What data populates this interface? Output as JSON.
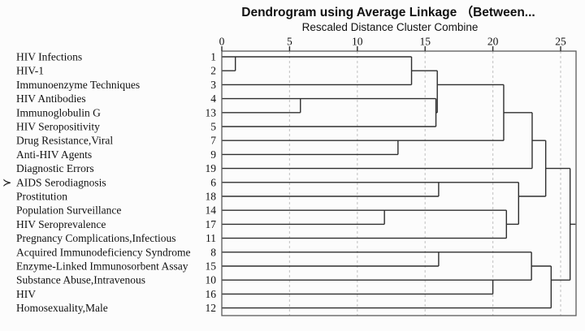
{
  "title": "Dendrogram using Average Linkage （Between...",
  "subtitle": "Rescaled Distance Cluster Combine",
  "marker_glyph": "≻",
  "colors": {
    "tree_line": "#2e2e2e",
    "grid_line": "#c9c9c9",
    "frame": "#5a5a5a",
    "text": "#111111",
    "background": "#fcfcfc"
  },
  "chart_data": {
    "type": "dendrogram",
    "title": "Dendrogram using Average Linkage （Between...",
    "xlabel": "Rescaled Distance Cluster Combine",
    "linkage_method": "Average Linkage",
    "xlim": [
      0,
      25
    ],
    "x_ticks": [
      0,
      5,
      10,
      15,
      20,
      25
    ],
    "grid": "dashed-vertical",
    "leaves": [
      {
        "row": 1,
        "label": "HIV Infections",
        "id": 1,
        "marked": false
      },
      {
        "row": 2,
        "label": "HIV-1",
        "id": 2,
        "marked": false
      },
      {
        "row": 3,
        "label": "Immunoenzyme Techniques",
        "id": 3,
        "marked": false
      },
      {
        "row": 4,
        "label": "HIV Antibodies",
        "id": 4,
        "marked": false
      },
      {
        "row": 5,
        "label": "Immunoglobulin G",
        "id": 13,
        "marked": false
      },
      {
        "row": 6,
        "label": "HIV Seropositivity",
        "id": 5,
        "marked": false
      },
      {
        "row": 7,
        "label": "Drug Resistance,Viral",
        "id": 7,
        "marked": false
      },
      {
        "row": 8,
        "label": "Anti-HIV Agents",
        "id": 9,
        "marked": false
      },
      {
        "row": 9,
        "label": "Diagnostic Errors",
        "id": 19,
        "marked": false
      },
      {
        "row": 10,
        "label": "AIDS Serodiagnosis",
        "id": 6,
        "marked": true
      },
      {
        "row": 11,
        "label": "Prostitution",
        "id": 18,
        "marked": false
      },
      {
        "row": 12,
        "label": "Population Surveillance",
        "id": 14,
        "marked": false
      },
      {
        "row": 13,
        "label": "HIV Seroprevalence",
        "id": 17,
        "marked": false
      },
      {
        "row": 14,
        "label": "Pregnancy Complications,Infectious",
        "id": 11,
        "marked": false
      },
      {
        "row": 15,
        "label": "Acquired Immunodeficiency Syndrome",
        "id": 8,
        "marked": false
      },
      {
        "row": 16,
        "label": "Enzyme-Linked Immunosorbent Assay",
        "id": 15,
        "marked": false
      },
      {
        "row": 17,
        "label": "Substance Abuse,Intravenous",
        "id": 10,
        "marked": false
      },
      {
        "row": 18,
        "label": "HIV",
        "id": 16,
        "marked": false
      },
      {
        "row": 19,
        "label": "Homosexuality,Male",
        "id": 12,
        "marked": false
      }
    ],
    "merges": [
      {
        "distance": 1.0,
        "joins": [
          "HIV Infections (1)",
          "HIV-1 (2)"
        ]
      },
      {
        "distance": 5.8,
        "joins": [
          "HIV Antibodies (4)",
          "Immunoglobulin G (13)"
        ]
      },
      {
        "distance": 12.0,
        "joins": [
          "Population Surveillance (14)",
          "HIV Seroprevalence (17)"
        ]
      },
      {
        "distance": 13.0,
        "joins": [
          "Drug Resistance,Viral (7)",
          "Anti-HIV Agents (9)"
        ]
      },
      {
        "distance": 14.0,
        "joins": [
          "cluster(1,2)",
          "Immunoenzyme Techniques (3)"
        ]
      },
      {
        "distance": 15.8,
        "joins": [
          "cluster(4,13)",
          "HIV Seropositivity (5)"
        ]
      },
      {
        "distance": 15.9,
        "joins": [
          "cluster(1,2,3)",
          "cluster(4,13,5)"
        ]
      },
      {
        "distance": 16.0,
        "joins": [
          "AIDS Serodiagnosis (6)",
          "Prostitution (18)"
        ]
      },
      {
        "distance": 16.0,
        "joins": [
          "Acquired Immunodeficiency Syndrome (8)",
          "Enzyme-Linked Immunosorbent Assay (15)"
        ]
      },
      {
        "distance": 20.0,
        "joins": [
          "Substance Abuse,Intravenous (10)",
          "HIV (16)"
        ]
      },
      {
        "distance": 20.8,
        "joins": [
          "cluster(1,2,3,4,13,5)",
          "cluster(7,9)"
        ]
      },
      {
        "distance": 21.0,
        "joins": [
          "cluster(14,17)",
          "Pregnancy Complications,Infectious (11)"
        ]
      },
      {
        "distance": 21.9,
        "joins": [
          "cluster(6,18)",
          "cluster(14,17,11)"
        ]
      },
      {
        "distance": 22.85,
        "joins": [
          "cluster(8,15)",
          "cluster(10,16)"
        ]
      },
      {
        "distance": 22.9,
        "joins": [
          "cluster(1,2,3,4,13,5,7,9)",
          "Diagnostic Errors (19)"
        ]
      },
      {
        "distance": 23.9,
        "joins": [
          "top cluster",
          "cluster(6,18,14,17,11)"
        ]
      },
      {
        "distance": 24.3,
        "joins": [
          "cluster(8,15,10,16)",
          "Homosexuality,Male (12)"
        ]
      },
      {
        "distance": 25.7,
        "joins": [
          "all upper clusters",
          "cluster(8,15,10,16,12)"
        ]
      }
    ],
    "horizontal_segments": [
      [
        1,
        0,
        14
      ],
      [
        2,
        0,
        1
      ],
      [
        2,
        14,
        15.9
      ],
      [
        3,
        0,
        14
      ],
      [
        3,
        15.9,
        20.8
      ],
      [
        4,
        0,
        15.8
      ],
      [
        5,
        0,
        5.8
      ],
      [
        5,
        15.8,
        15.9
      ],
      [
        5,
        20.8,
        22.9
      ],
      [
        6,
        0,
        15.8
      ],
      [
        7,
        0,
        20.8
      ],
      [
        8,
        0,
        13
      ],
      [
        7,
        22.9,
        23.9
      ],
      [
        9,
        0,
        22.9
      ],
      [
        9,
        23.9,
        25.7
      ],
      [
        10,
        0,
        21.9
      ],
      [
        11,
        0,
        16
      ],
      [
        11,
        21.9,
        23.9
      ],
      [
        12,
        0,
        21
      ],
      [
        13,
        0,
        12
      ],
      [
        13,
        21,
        21.9
      ],
      [
        14,
        0,
        21
      ],
      [
        15,
        0,
        22.85
      ],
      [
        16,
        0,
        16
      ],
      [
        16,
        22.85,
        24.3
      ],
      [
        17,
        0,
        22.85
      ],
      [
        18,
        0,
        20
      ],
      [
        17,
        24.3,
        25.7
      ],
      [
        19,
        0,
        24.3
      ],
      [
        13,
        25.7,
        26.1
      ]
    ],
    "vertical_segments": [
      [
        1,
        1,
        2
      ],
      [
        5.8,
        4,
        5
      ],
      [
        13,
        7,
        8
      ],
      [
        14,
        1,
        3
      ],
      [
        15.8,
        4,
        6
      ],
      [
        15.9,
        2,
        5
      ],
      [
        20.8,
        3,
        7
      ],
      [
        22.9,
        5,
        9
      ],
      [
        23.9,
        7,
        11
      ],
      [
        12,
        12,
        13
      ],
      [
        16,
        10,
        11
      ],
      [
        16,
        15,
        16
      ],
      [
        20,
        17,
        18
      ],
      [
        21,
        12,
        14
      ],
      [
        21.9,
        10,
        13
      ],
      [
        22.85,
        15,
        17
      ],
      [
        24.3,
        16,
        19
      ],
      [
        25.7,
        9,
        17
      ]
    ]
  }
}
